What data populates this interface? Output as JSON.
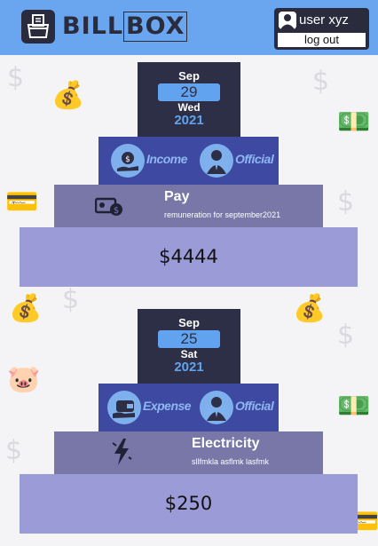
{
  "header": {
    "logo_text_1": "BILL",
    "logo_text_2": "BOX",
    "logo_icon": "receipt-box-icon",
    "user_icon": "user-avatar-icon",
    "user_name": "user xyz",
    "logout_label": "log out",
    "background_color": "#6aa6ef"
  },
  "transactions": [
    {
      "month": "Sep",
      "day": "29",
      "weekday": "Wed",
      "year": "2021",
      "type_label": "Income",
      "type_icon": "money-bag-hand-icon",
      "scope_label": "Official",
      "scope_icon": "person-suit-icon",
      "category_title": "Pay",
      "category_icon": "cash-payment-icon",
      "description": "remuneration for september2021",
      "amount": "$4444"
    },
    {
      "month": "Sep",
      "day": "25",
      "weekday": "Sat",
      "year": "2021",
      "type_label": "Expense",
      "type_icon": "wallet-hand-icon",
      "scope_label": "Official",
      "scope_icon": "person-suit-icon",
      "category_title": "Electricity",
      "category_icon": "lightning-bolt-icon",
      "description": "sllfmkla asflmk lasfmk",
      "amount": "$250"
    }
  ],
  "colors": {
    "date_box": "#2c2f45",
    "accent_blue": "#62a3ef",
    "tag_row": "#3e4aa1",
    "category_row": "#7877a8",
    "amount_row": "#9b9bd8"
  }
}
